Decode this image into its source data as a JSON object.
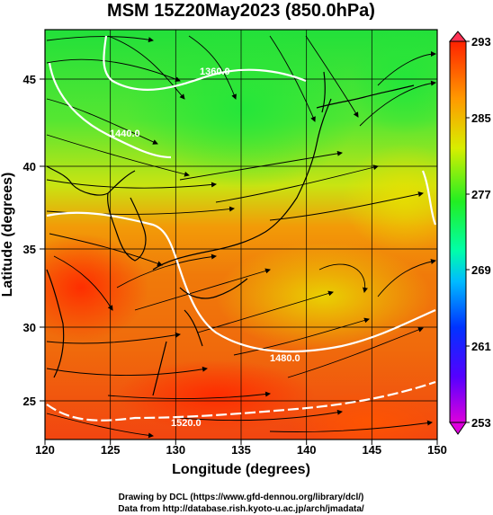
{
  "title": "MSM 15Z20May2023 (850.0hPa)",
  "x_axis": {
    "label": "Longitude (degrees)",
    "range": [
      120,
      150
    ],
    "ticks": [
      "120",
      "125",
      "130",
      "135",
      "140",
      "145",
      "150"
    ]
  },
  "y_axis": {
    "label": "Latitude  (degrees)",
    "range": [
      23,
      48
    ],
    "ticks": [
      "25",
      "30",
      "35",
      "40",
      "45"
    ]
  },
  "colorbar": {
    "min": 253,
    "max": 293,
    "ticks": [
      "293",
      "285",
      "277",
      "269",
      "261",
      "253"
    ]
  },
  "contour_labels": [
    "1360.0",
    "1440.0",
    "1480.0",
    "1520.0"
  ],
  "credits": {
    "line1": "Drawing by DCL (https://www.gfd-dennou.org/library/dcl/)",
    "line2": "Data from http://database.rish.kyoto-u.ac.jp/arch/jmadata/"
  },
  "colors": {
    "cold": "#cc00cc",
    "cool": "#0000ff",
    "mid": "#00ff66",
    "warm": "#ffcc00",
    "hot": "#ff3300",
    "contour": "#ffffff",
    "coastline": "#000000"
  }
}
